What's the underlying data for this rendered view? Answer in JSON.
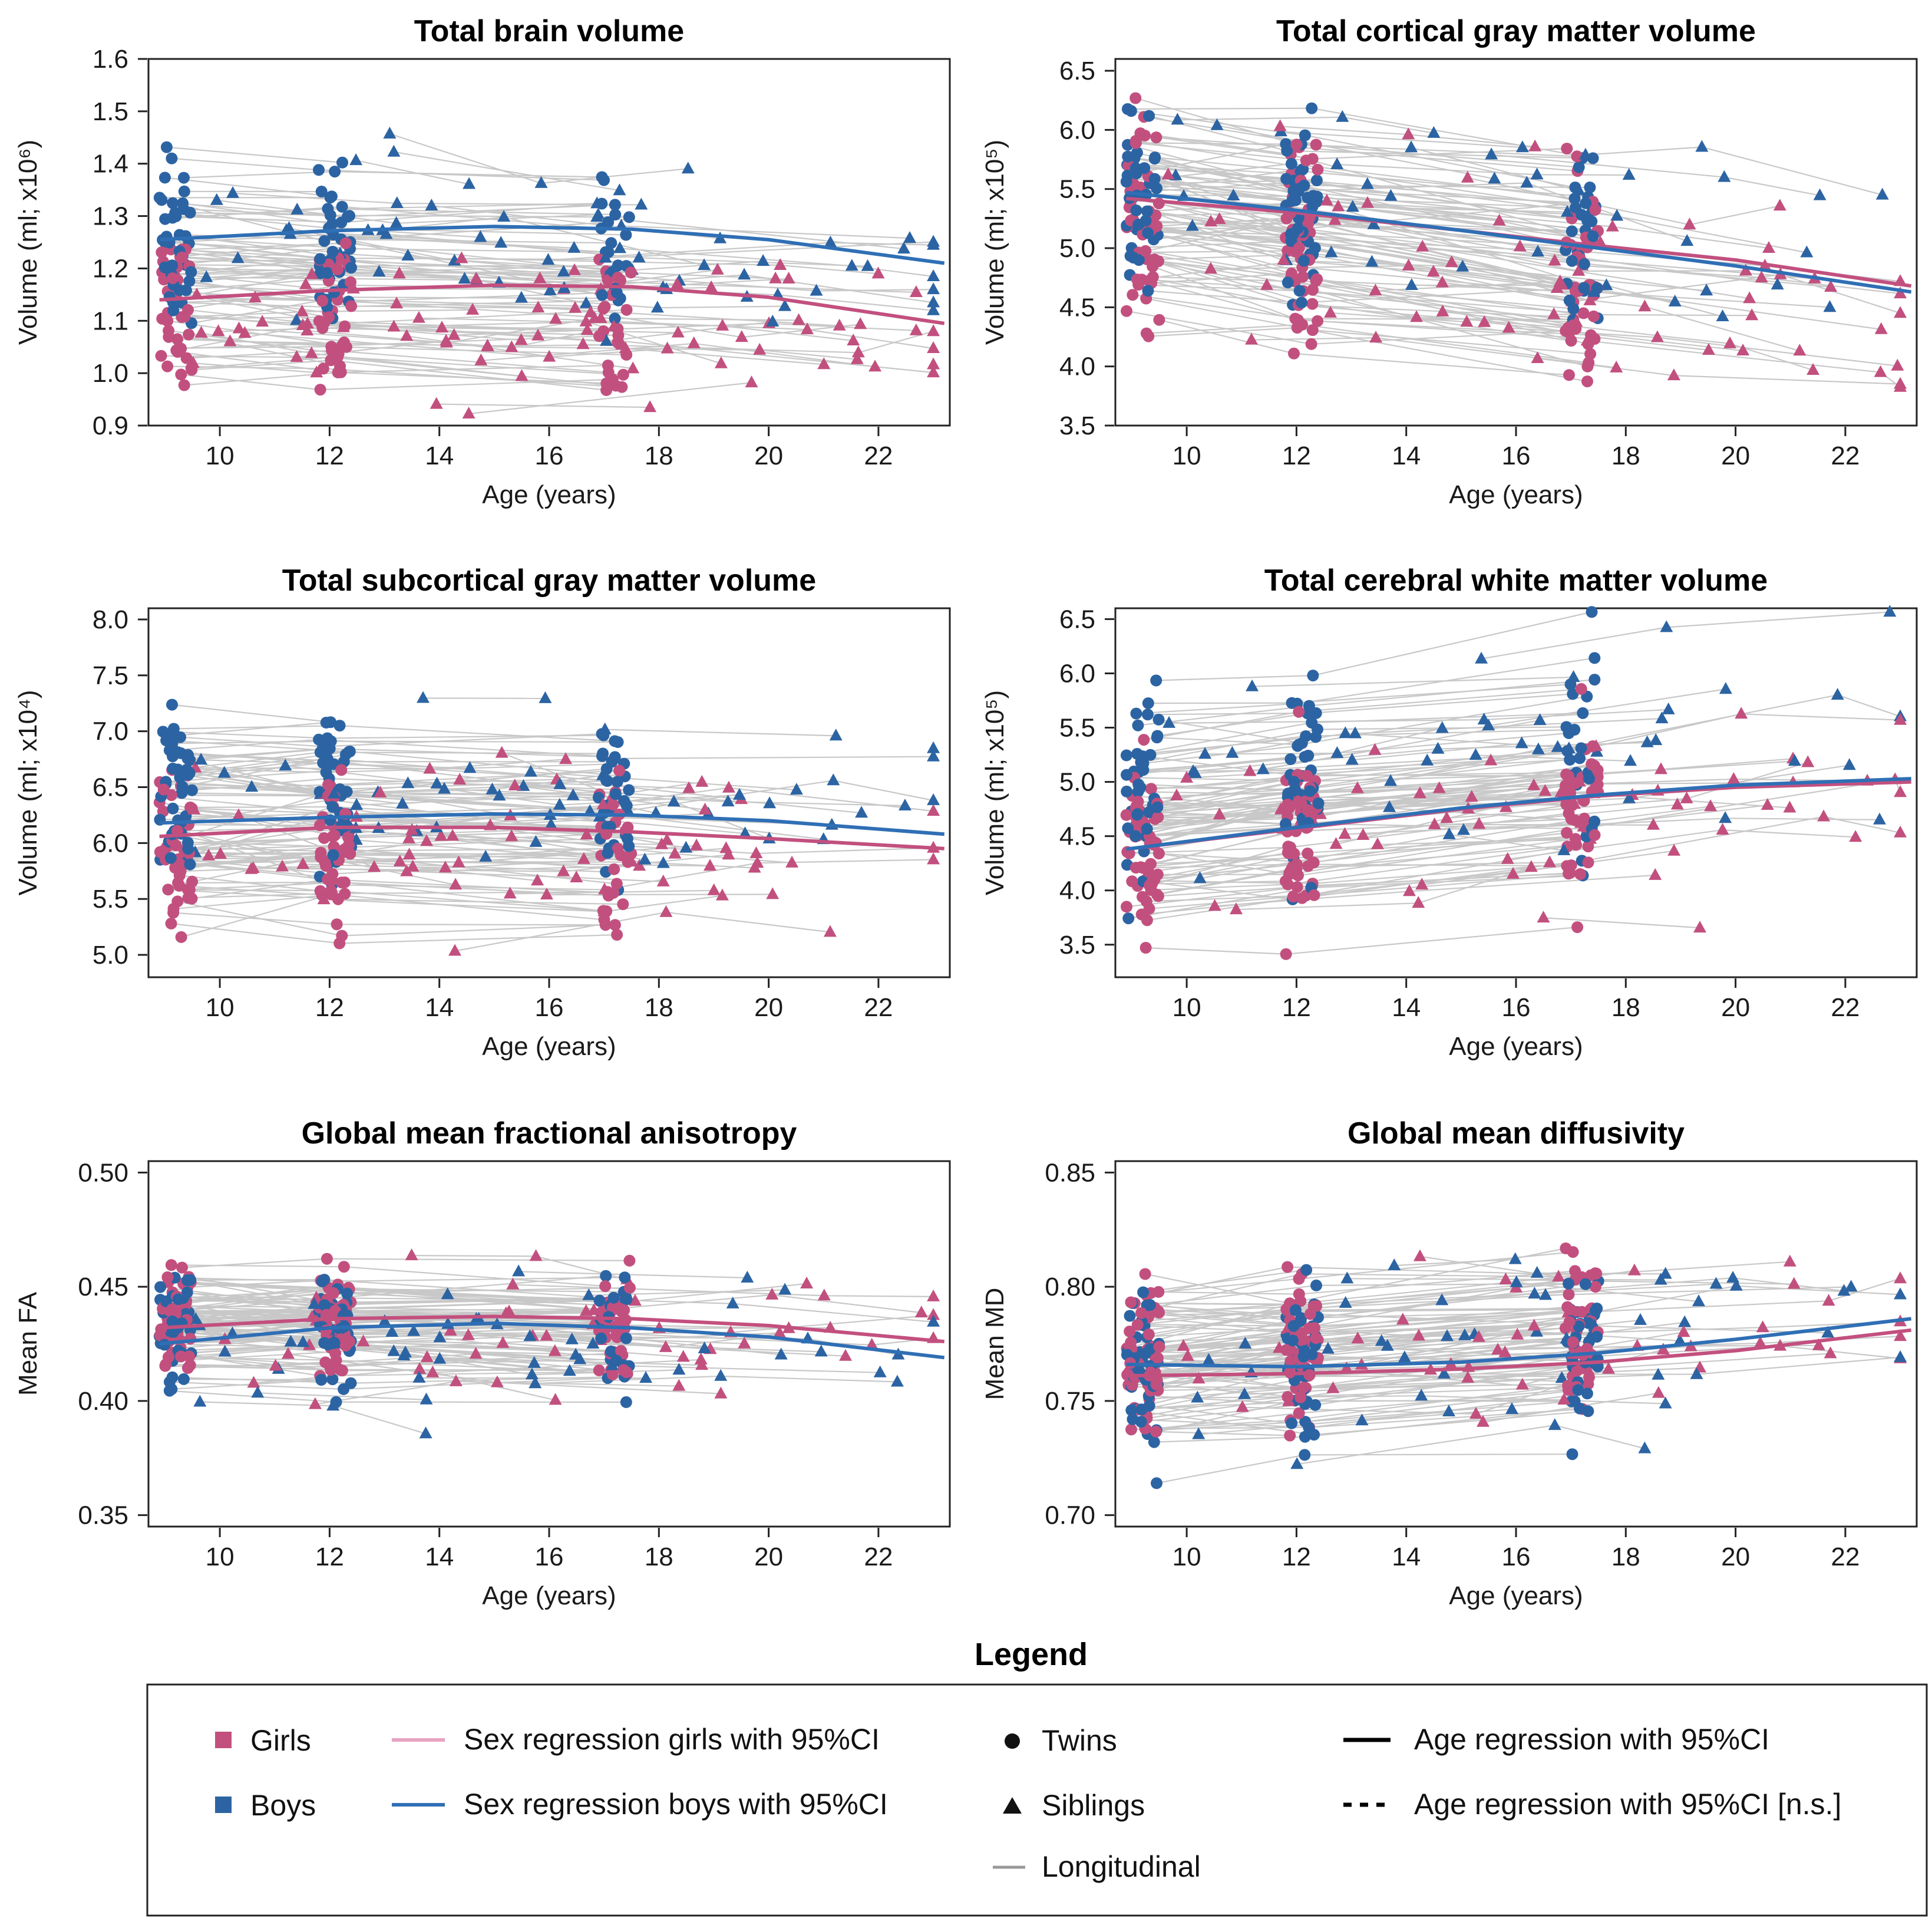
{
  "colors": {
    "girls": "#c2507f",
    "boys": "#2c64a3",
    "girls_line": "#c2507f",
    "boys_line": "#2f6fb5",
    "longitudinal": "#c8c8c8",
    "frame": "#222222"
  },
  "chart_data": [
    {
      "type": "scatter",
      "title": "Total brain volume",
      "xlabel": "Age (years)",
      "ylabel": "Volume (ml; x10⁶)",
      "xlim": [
        8.7,
        23.3
      ],
      "ylim": [
        0.9,
        1.6
      ],
      "xticks": [
        10,
        12,
        14,
        16,
        18,
        20,
        22
      ],
      "yticks": [
        0.9,
        1.0,
        1.1,
        1.2,
        1.3,
        1.4,
        1.5,
        1.6
      ],
      "ytick_labels": [
        "0.9",
        "1.0",
        "1.1",
        "1.2",
        "1.3",
        "1.4",
        "1.5",
        "1.6"
      ],
      "girls_mean": 1.125,
      "girls_spread": 0.075,
      "boys_mean": 1.255,
      "boys_spread": 0.085,
      "series": [
        {
          "name": "Sex regression girls",
          "x": [
            8.9,
            12,
            15,
            17.5,
            20,
            23.2
          ],
          "y": [
            1.14,
            1.158,
            1.168,
            1.165,
            1.145,
            1.095
          ]
        },
        {
          "name": "Sex regression boys",
          "x": [
            8.9,
            12,
            15,
            17.5,
            20,
            23.2
          ],
          "y": [
            1.255,
            1.272,
            1.28,
            1.275,
            1.255,
            1.21
          ]
        }
      ]
    },
    {
      "type": "scatter",
      "title": "Total cortical gray matter volume",
      "xlabel": "Age (years)",
      "ylabel": "Volume (ml; x10⁵)",
      "xlim": [
        8.7,
        23.3
      ],
      "ylim": [
        3.5,
        6.6
      ],
      "xticks": [
        10,
        12,
        14,
        16,
        18,
        20,
        22
      ],
      "yticks": [
        3.5,
        4.0,
        4.5,
        5.0,
        5.5,
        6.0,
        6.5
      ],
      "ytick_labels": [
        "3.5",
        "4.0",
        "4.5",
        "5.0",
        "5.5",
        "6.0",
        "6.5"
      ],
      "girls_mean": 5.2,
      "girls_spread": 0.45,
      "boys_mean": 5.55,
      "boys_spread": 0.4,
      "series": [
        {
          "name": "Sex regression girls",
          "x": [
            8.9,
            12,
            15,
            17.5,
            20,
            23.2
          ],
          "y": [
            5.42,
            5.3,
            5.15,
            5.02,
            4.9,
            4.68
          ]
        },
        {
          "name": "Sex regression boys",
          "x": [
            8.9,
            12,
            15,
            17.5,
            20,
            23.2
          ],
          "y": [
            5.47,
            5.32,
            5.15,
            5.0,
            4.85,
            4.63
          ]
        }
      ]
    },
    {
      "type": "scatter",
      "title": "Total subcortical gray matter volume",
      "xlabel": "Age (years)",
      "ylabel": "Volume (ml; x10⁴)",
      "xlim": [
        8.7,
        23.3
      ],
      "ylim": [
        4.8,
        8.1
      ],
      "xticks": [
        10,
        12,
        14,
        16,
        18,
        20,
        22
      ],
      "yticks": [
        5.0,
        5.5,
        6.0,
        6.5,
        7.0,
        7.5,
        8.0
      ],
      "ytick_labels": [
        "5.0",
        "5.5",
        "6.0",
        "6.5",
        "7.0",
        "7.5",
        "8.0"
      ],
      "girls_mean": 5.95,
      "girls_spread": 0.4,
      "boys_mean": 6.45,
      "boys_spread": 0.45,
      "series": [
        {
          "name": "Sex regression girls",
          "x": [
            8.9,
            12,
            15,
            17.5,
            20,
            23.2
          ],
          "y": [
            6.06,
            6.14,
            6.14,
            6.1,
            6.04,
            5.95
          ]
        },
        {
          "name": "Sex regression boys",
          "x": [
            8.9,
            12,
            15,
            17.5,
            20,
            23.2
          ],
          "y": [
            6.18,
            6.23,
            6.26,
            6.25,
            6.2,
            6.08
          ]
        }
      ]
    },
    {
      "type": "scatter",
      "title": "Total cerebral white matter volume",
      "xlabel": "Age (years)",
      "ylabel": "Volume (ml; x10⁵)",
      "xlim": [
        8.7,
        23.3
      ],
      "ylim": [
        3.2,
        6.6
      ],
      "xticks": [
        10,
        12,
        14,
        16,
        18,
        20,
        22
      ],
      "yticks": [
        3.5,
        4.0,
        4.5,
        5.0,
        5.5,
        6.0,
        6.5
      ],
      "ytick_labels": [
        "3.5",
        "4.0",
        "4.5",
        "5.0",
        "5.5",
        "6.0",
        "6.5"
      ],
      "girls_mean": 4.4,
      "girls_spread": 0.4,
      "boys_mean": 4.95,
      "boys_spread": 0.45,
      "series": [
        {
          "name": "Sex regression girls",
          "x": [
            8.9,
            12,
            15,
            17.5,
            20,
            23.2
          ],
          "y": [
            4.38,
            4.57,
            4.75,
            4.87,
            4.95,
            5.0
          ]
        },
        {
          "name": "Sex regression boys",
          "x": [
            8.9,
            12,
            15,
            17.5,
            20,
            23.2
          ],
          "y": [
            4.38,
            4.58,
            4.76,
            4.88,
            4.97,
            5.03
          ]
        }
      ]
    },
    {
      "type": "scatter",
      "title": "Global mean fractional anisotropy",
      "xlabel": "Age (years)",
      "ylabel": "Mean FA",
      "xlim": [
        8.7,
        23.3
      ],
      "ylim": [
        0.345,
        0.505
      ],
      "xticks": [
        10,
        12,
        14,
        16,
        18,
        20,
        22
      ],
      "yticks": [
        0.35,
        0.4,
        0.45,
        0.5
      ],
      "ytick_labels": [
        "0.35",
        "0.40",
        "0.45",
        "0.50"
      ],
      "girls_mean": 0.435,
      "girls_spread": 0.015,
      "boys_mean": 0.43,
      "boys_spread": 0.015,
      "series": [
        {
          "name": "Sex regression girls",
          "x": [
            8.9,
            12,
            15,
            17.5,
            20,
            23.2
          ],
          "y": [
            0.432,
            0.436,
            0.437,
            0.436,
            0.433,
            0.426
          ]
        },
        {
          "name": "Sex regression boys",
          "x": [
            8.9,
            12,
            15,
            17.5,
            20,
            23.2
          ],
          "y": [
            0.425,
            0.432,
            0.434,
            0.432,
            0.428,
            0.419
          ]
        }
      ]
    },
    {
      "type": "scatter",
      "title": "Global mean diffusivity",
      "xlabel": "Age (years)",
      "ylabel": "Mean MD",
      "xlim": [
        8.7,
        23.3
      ],
      "ylim": [
        0.695,
        0.855
      ],
      "xticks": [
        10,
        12,
        14,
        16,
        18,
        20,
        22
      ],
      "yticks": [
        0.7,
        0.75,
        0.8,
        0.85
      ],
      "ytick_labels": [
        "0.70",
        "0.75",
        "0.80",
        "0.85"
      ],
      "girls_mean": 0.765,
      "girls_spread": 0.02,
      "boys_mean": 0.763,
      "boys_spread": 0.02,
      "series": [
        {
          "name": "Sex regression girls",
          "x": [
            8.9,
            12,
            15,
            17.5,
            20,
            23.2
          ],
          "y": [
            0.761,
            0.762,
            0.764,
            0.767,
            0.772,
            0.781
          ]
        },
        {
          "name": "Sex regression boys",
          "x": [
            8.9,
            12,
            15,
            17.5,
            20,
            23.2
          ],
          "y": [
            0.766,
            0.765,
            0.767,
            0.771,
            0.777,
            0.786
          ]
        }
      ]
    }
  ],
  "legend": {
    "title": "Legend",
    "girls": "Girls",
    "boys": "Boys",
    "sex_girls": "Sex regression girls with 95%CI",
    "sex_boys": "Sex regression boys with 95%CI",
    "twins": "Twins",
    "siblings": "Siblings",
    "longitudinal": "Longitudinal",
    "age_reg": "Age regression with 95%CI",
    "age_reg_ns": "Age regression with 95%CI [n.s.]"
  }
}
